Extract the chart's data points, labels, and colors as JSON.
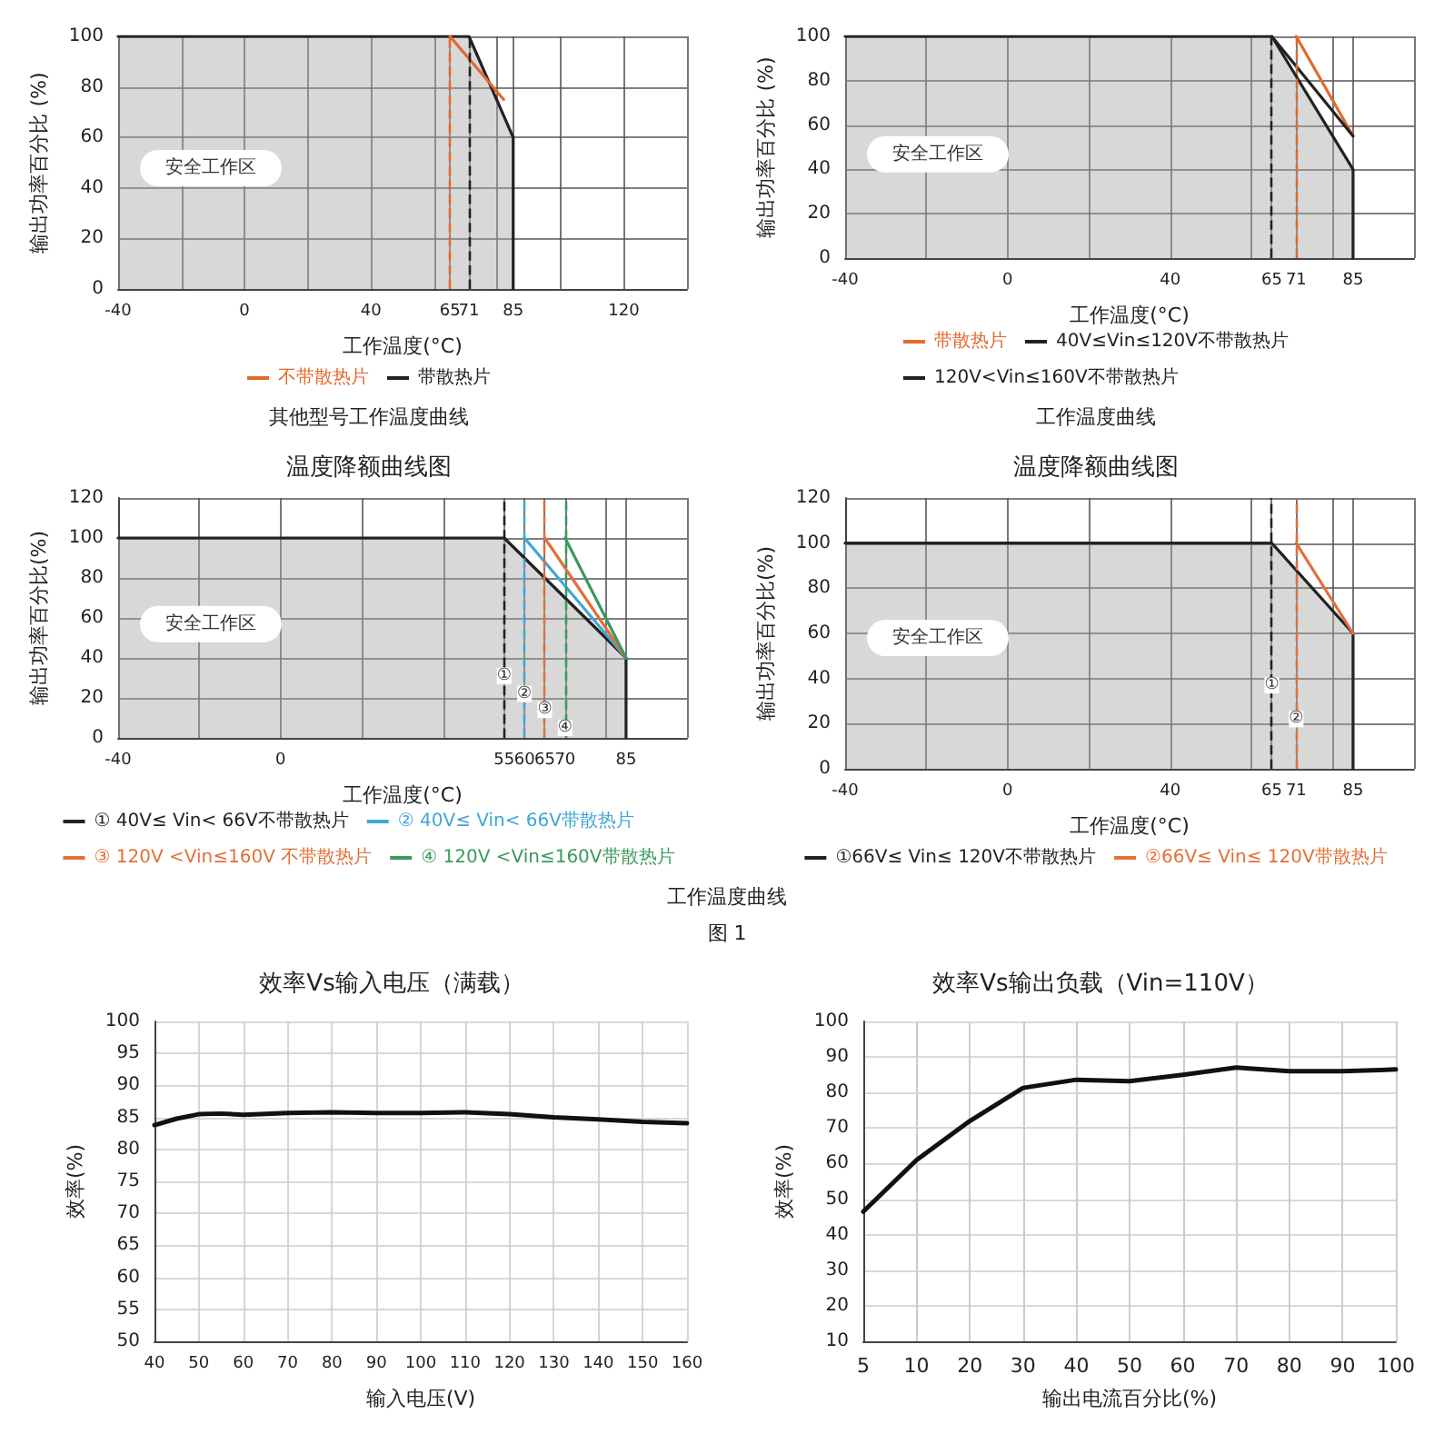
{
  "chart_data": [
    {
      "type": "line",
      "xlabel": "工作温度(°C)",
      "ylabel": "输出功率百分比 (%)",
      "xlim": [
        -40,
        140
      ],
      "xticks": [
        -40,
        {
          "value": -20,
          "label": null
        },
        0,
        {
          "value": 20,
          "label": null
        },
        40,
        {
          "value": 60,
          "label": null
        },
        65,
        71,
        {
          "value": 80,
          "label": null
        },
        85,
        {
          "value": 100,
          "label": null
        },
        120,
        {
          "value": 140,
          "label": null
        }
      ],
      "ylim": [
        0,
        100
      ],
      "yticks": [
        0,
        20,
        40,
        60,
        80,
        100
      ],
      "grid": true,
      "legend": "bottom",
      "line_style": "solid",
      "series": [
        {
          "name": "不带散热片",
          "color": "#e06a2c",
          "x": [
            65,
            82
          ],
          "values": [
            100,
            75
          ]
        },
        {
          "name": "带散热片",
          "type": "area",
          "color": "#222222",
          "x": [
            -40,
            71,
            85,
            85
          ],
          "values": [
            100,
            100,
            60,
            0
          ]
        }
      ],
      "ref_lines": [
        {
          "axis": "x",
          "value": 65,
          "color": "#e06a2c",
          "line_style": "dashed"
        },
        {
          "axis": "x",
          "value": 71,
          "color": "#222222",
          "line_style": "dashed"
        }
      ],
      "annotations": [
        "安全工作区",
        "其他型号工作温度曲线"
      ]
    },
    {
      "type": "line",
      "xlabel": "工作温度(°C)",
      "ylabel": "输出功率百分比 (%)",
      "xlim": [
        -40,
        100
      ],
      "xticks": [
        -40,
        {
          "value": -20,
          "label": null
        },
        0,
        {
          "value": 20,
          "label": null
        },
        40,
        {
          "value": 60,
          "label": null
        },
        65,
        71,
        {
          "value": 80,
          "label": null
        },
        85,
        {
          "value": 100,
          "label": null
        }
      ],
      "ylim": [
        0,
        100
      ],
      "yticks": [
        0,
        20,
        40,
        60,
        80,
        100
      ],
      "grid": true,
      "legend": "bottom",
      "line_style": "solid",
      "series": [
        {
          "name": "带散热片",
          "color": "#e06a2c",
          "x": [
            71,
            85
          ],
          "values": [
            100,
            55
          ]
        },
        {
          "name": "40V≤Vin≤120V不带散热片",
          "color": "#222222",
          "x": [
            65,
            85
          ],
          "values": [
            100,
            55
          ]
        },
        {
          "name": "120V<Vin≤160V不带散热片",
          "type": "area",
          "color": "#222222",
          "x": [
            -40,
            65,
            85,
            85
          ],
          "values": [
            100,
            100,
            40,
            0
          ]
        }
      ],
      "ref_lines": [
        {
          "axis": "x",
          "value": 65,
          "color": "#222222",
          "line_style": "dashed"
        },
        {
          "axis": "x",
          "value": 71,
          "color": "#e06a2c",
          "line_style": "dashed"
        }
      ],
      "annotations": [
        "安全工作区",
        "工作温度曲线"
      ]
    },
    {
      "type": "line",
      "title": "温度降额曲线图",
      "xlabel": "工作温度(°C)",
      "ylabel": "输出功率百分比(%)",
      "xlim": [
        -40,
        100
      ],
      "xticks": [
        -40,
        {
          "value": -20,
          "label": null
        },
        0,
        {
          "value": 20,
          "label": null
        },
        {
          "value": 40,
          "label": null
        },
        55,
        60,
        65,
        70,
        {
          "value": 80,
          "label": null
        },
        85,
        {
          "value": 100,
          "label": null
        }
      ],
      "ylim": [
        0,
        120
      ],
      "yticks": [
        0,
        20,
        40,
        60,
        80,
        100,
        120
      ],
      "grid": true,
      "legend": "bottom",
      "line_style": "solid",
      "series": [
        {
          "name": "① 40V≤ Vin< 66V不带散热片",
          "type": "area",
          "color": "#222222",
          "x": [
            -40,
            55,
            85,
            85
          ],
          "values": [
            100,
            100,
            40,
            0
          ]
        },
        {
          "name": "② 40V≤ Vin< 66V带散热片",
          "color": "#3fa6d6",
          "x": [
            60,
            85
          ],
          "values": [
            100,
            40
          ]
        },
        {
          "name": "③ 120V <Vin≤160V 不带散热片",
          "color": "#e2703a",
          "x": [
            65,
            85
          ],
          "values": [
            100,
            40
          ]
        },
        {
          "name": "④ 120V <Vin≤160V带散热片",
          "color": "#3a9a5c",
          "x": [
            70,
            85
          ],
          "values": [
            100,
            40
          ]
        }
      ],
      "ref_lines": [
        {
          "axis": "x",
          "value": 55,
          "color": "#222222",
          "line_style": "dashed"
        },
        {
          "axis": "x",
          "value": 60,
          "color": "#3fa6d6",
          "line_style": "dashed"
        },
        {
          "axis": "x",
          "value": 65,
          "color": "#e2703a",
          "line_style": "dashed"
        },
        {
          "axis": "x",
          "value": 70,
          "color": "#3a9a5c",
          "line_style": "dashed"
        }
      ],
      "annotations": [
        "安全工作区",
        {
          "text": "①",
          "x": 55,
          "y": 31
        },
        {
          "text": "②",
          "x": 60,
          "y": 22
        },
        {
          "text": "③",
          "x": 65,
          "y": 14
        },
        {
          "text": "④",
          "x": 70,
          "y": 5
        }
      ]
    },
    {
      "type": "line",
      "title": "温度降额曲线图",
      "xlabel": "工作温度(°C)",
      "ylabel": "输出功率百分比(%)",
      "xlim": [
        -40,
        100
      ],
      "xticks": [
        -40,
        {
          "value": -20,
          "label": null
        },
        0,
        {
          "value": 20,
          "label": null
        },
        40,
        {
          "value": 60,
          "label": null
        },
        65,
        71,
        {
          "value": 80,
          "label": null
        },
        85,
        {
          "value": 100,
          "label": null
        }
      ],
      "ylim": [
        0,
        120
      ],
      "yticks": [
        0,
        20,
        40,
        60,
        80,
        100,
        120
      ],
      "grid": true,
      "legend": "bottom",
      "line_style": "solid",
      "series": [
        {
          "name": "①66V≤ Vin≤ 120V不带散热片",
          "type": "area",
          "color": "#222222",
          "x": [
            -40,
            65,
            85,
            85
          ],
          "values": [
            100,
            100,
            60,
            0
          ]
        },
        {
          "name": "②66V≤ Vin≤ 120V带散热片",
          "color": "#e2703a",
          "x": [
            71,
            85
          ],
          "values": [
            100,
            60
          ]
        }
      ],
      "ref_lines": [
        {
          "axis": "x",
          "value": 65,
          "color": "#222222",
          "line_style": "dashed"
        },
        {
          "axis": "x",
          "value": 71,
          "color": "#e2703a",
          "line_style": "dashed"
        }
      ],
      "annotations": [
        "安全工作区",
        {
          "text": "①",
          "x": 65,
          "y": 37
        },
        {
          "text": "②",
          "x": 71,
          "y": 22
        },
        "工作温度曲线",
        "图 1"
      ]
    },
    {
      "type": "line",
      "title": "效率Vs输入电压（满载）",
      "xlabel": "输入电压(V)",
      "ylabel": "效率(%)",
      "xlim": [
        40,
        160
      ],
      "xticks": [
        40,
        50,
        60,
        70,
        80,
        90,
        100,
        110,
        120,
        130,
        140,
        150,
        160
      ],
      "ylim": [
        50,
        100
      ],
      "yticks": [
        50,
        55,
        60,
        65,
        70,
        75,
        80,
        85,
        90,
        95,
        100
      ],
      "grid": true,
      "line_style": "solid",
      "x": [
        40,
        45,
        50,
        55,
        60,
        70,
        80,
        90,
        100,
        110,
        120,
        130,
        140,
        150,
        160
      ],
      "color": "#111111",
      "values": [
        83.8,
        84.8,
        85.5,
        85.6,
        85.4,
        85.7,
        85.8,
        85.7,
        85.7,
        85.8,
        85.5,
        85.0,
        84.7,
        84.3,
        84.1
      ]
    },
    {
      "type": "line",
      "title": "效率Vs输出负载（Vin=110V）",
      "xlabel": "输出电流百分比(%)",
      "ylabel": "效率(%)",
      "categories": [
        "5",
        "10",
        "20",
        "30",
        "40",
        "50",
        "60",
        "70",
        "80",
        "90",
        "100"
      ],
      "ylim": [
        10,
        100
      ],
      "yticks": [
        10,
        20,
        30,
        40,
        50,
        60,
        70,
        80,
        90,
        100
      ],
      "grid": true,
      "line_style": "solid",
      "color": "#111111",
      "values": [
        46.5,
        61,
        72,
        81.3,
        83.6,
        83.2,
        85,
        87,
        86,
        86,
        86.5
      ]
    }
  ]
}
